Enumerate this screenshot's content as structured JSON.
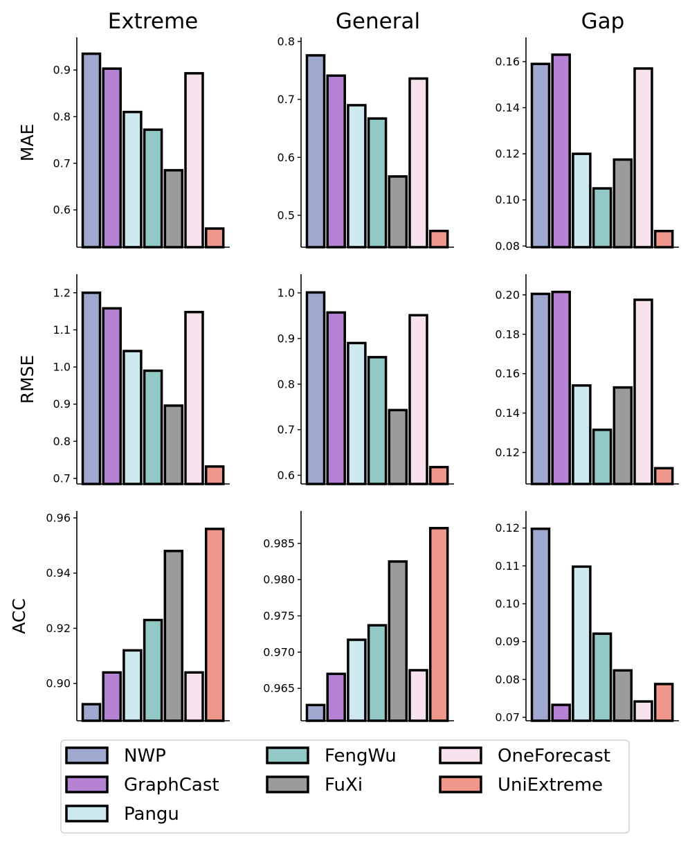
{
  "chart_data": {
    "type": "bar",
    "column_titles": [
      "Extreme",
      "General",
      "Gap"
    ],
    "row_labels": [
      "MAE",
      "RMSE",
      "ACC"
    ],
    "models": [
      "NWP",
      "GraphCast",
      "Pangu",
      "FengWu",
      "FuXi",
      "OneForecast",
      "UniExtreme"
    ],
    "colors": {
      "NWP": "#9fa8cf",
      "GraphCast": "#b682d4",
      "Pangu": "#cfe9f0",
      "FengWu": "#92c8c5",
      "FuXi": "#9b9b9b",
      "OneForecast": "#f7e1ec",
      "UniExtreme": "#ee978a"
    },
    "legend": {
      "placement": "bottom",
      "columns": [
        [
          "NWP",
          "GraphCast",
          "Pangu"
        ],
        [
          "FengWu",
          "FuXi"
        ],
        [
          "OneForecast",
          "UniExtreme"
        ]
      ]
    },
    "panels": [
      {
        "row": "MAE",
        "column": "Extreme",
        "ylim": [
          0.52,
          0.97
        ],
        "yticks": [
          0.6,
          0.7,
          0.8,
          0.9
        ],
        "tick_labels": [
          "0.6",
          "0.7",
          "0.8",
          "0.9"
        ],
        "values": [
          0.935,
          0.903,
          0.81,
          0.772,
          0.685,
          0.893,
          0.56
        ]
      },
      {
        "row": "MAE",
        "column": "General",
        "ylim": [
          0.445,
          0.807
        ],
        "yticks": [
          0.5,
          0.6,
          0.7,
          0.8
        ],
        "tick_labels": [
          "0.5",
          "0.6",
          "0.7",
          "0.8"
        ],
        "values": [
          0.776,
          0.741,
          0.69,
          0.667,
          0.567,
          0.736,
          0.473
        ]
      },
      {
        "row": "MAE",
        "column": "Gap",
        "ylim": [
          0.0795,
          0.1705
        ],
        "yticks": [
          0.08,
          0.1,
          0.12,
          0.14,
          0.16
        ],
        "tick_labels": [
          "0.08",
          "0.10",
          "0.12",
          "0.14",
          "0.16"
        ],
        "values": [
          0.159,
          0.163,
          0.12,
          0.105,
          0.1175,
          0.157,
          0.0865
        ]
      },
      {
        "row": "RMSE",
        "column": "Extreme",
        "ylim": [
          0.685,
          1.25
        ],
        "yticks": [
          0.7,
          0.8,
          0.9,
          1.0,
          1.1,
          1.2
        ],
        "tick_labels": [
          "0.7",
          "0.8",
          "0.9",
          "1.0",
          "1.1",
          "1.2"
        ],
        "values": [
          1.2,
          1.158,
          1.043,
          0.99,
          0.896,
          1.148,
          0.732
        ]
      },
      {
        "row": "RMSE",
        "column": "General",
        "ylim": [
          0.581,
          1.041
        ],
        "yticks": [
          0.6,
          0.7,
          0.8,
          0.9,
          1.0
        ],
        "tick_labels": [
          "0.6",
          "0.7",
          "0.8",
          "0.9",
          "1.0"
        ],
        "values": [
          1.001,
          0.957,
          0.89,
          0.859,
          0.743,
          0.951,
          0.618
        ]
      },
      {
        "row": "RMSE",
        "column": "Gap",
        "ylim": [
          0.104,
          0.2105
        ],
        "yticks": [
          0.12,
          0.14,
          0.16,
          0.18,
          0.2
        ],
        "tick_labels": [
          "0.12",
          "0.14",
          "0.16",
          "0.18",
          "0.20"
        ],
        "values": [
          0.2005,
          0.2015,
          0.154,
          0.1315,
          0.153,
          0.1975,
          0.112
        ]
      },
      {
        "row": "ACC",
        "column": "Extreme",
        "ylim": [
          0.8865,
          0.9625
        ],
        "yticks": [
          0.9,
          0.92,
          0.94,
          0.96
        ],
        "tick_labels": [
          "0.90",
          "0.92",
          "0.94",
          "0.96"
        ],
        "values": [
          0.8925,
          0.904,
          0.912,
          0.923,
          0.948,
          0.904,
          0.956
        ]
      },
      {
        "row": "ACC",
        "column": "General",
        "ylim": [
          0.96053,
          0.98947
        ],
        "yticks": [
          0.965,
          0.97,
          0.975,
          0.98,
          0.985
        ],
        "tick_labels": [
          "0.965",
          "0.970",
          "0.975",
          "0.980",
          "0.985"
        ],
        "values": [
          0.9627,
          0.967,
          0.9717,
          0.9737,
          0.9825,
          0.9675,
          0.9871
        ]
      },
      {
        "row": "ACC",
        "column": "Gap",
        "ylim": [
          0.0691,
          0.1245
        ],
        "yticks": [
          0.07,
          0.08,
          0.09,
          0.1,
          0.11,
          0.12
        ],
        "tick_labels": [
          "0.07",
          "0.08",
          "0.09",
          "0.10",
          "0.11",
          "0.12"
        ],
        "values": [
          0.1198,
          0.0733,
          0.1098,
          0.0921,
          0.0824,
          0.0742,
          0.0788
        ]
      }
    ]
  }
}
